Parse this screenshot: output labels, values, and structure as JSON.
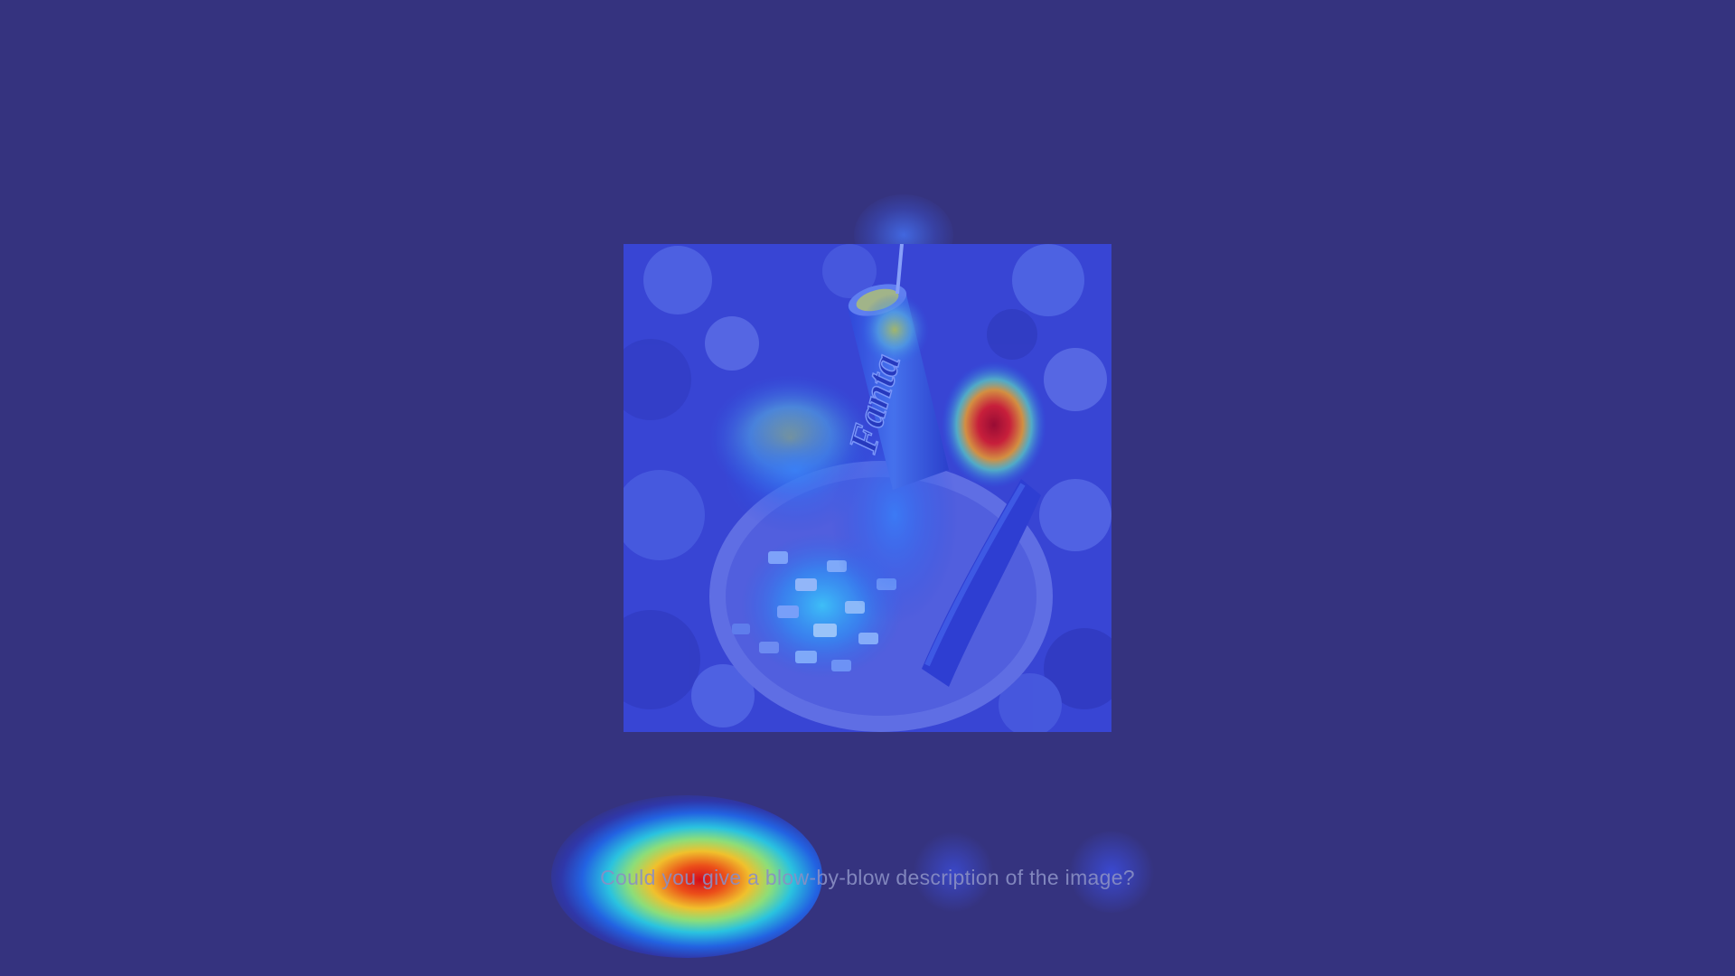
{
  "question": {
    "text": "Could you give a blow-by-blow description of the image?"
  },
  "image": {
    "can_label": "Fanta"
  },
  "colors": {
    "background": "#35337f",
    "heat_red": "#dc0a14",
    "heat_yellow": "#fac828",
    "heat_cyan": "#28dcf0",
    "heat_blue": "#1e6efa"
  }
}
